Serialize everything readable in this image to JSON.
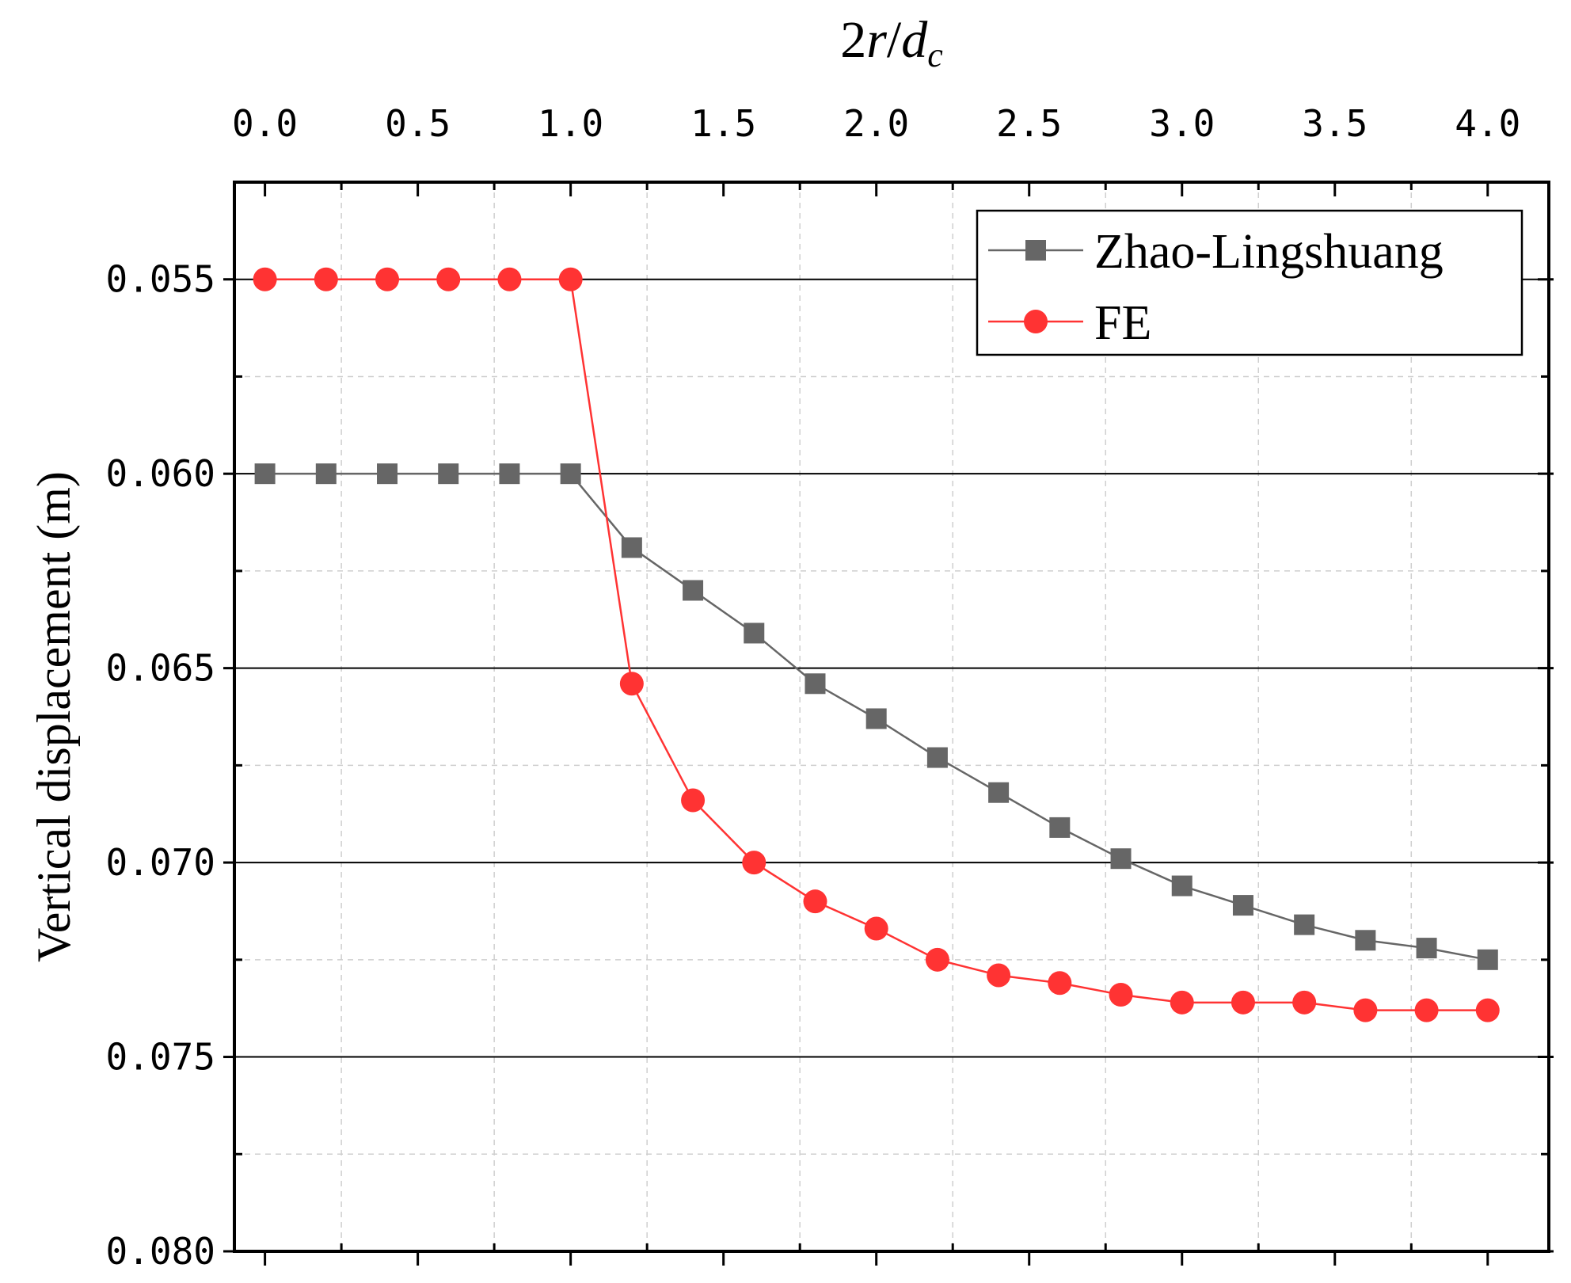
{
  "chart_data": {
    "type": "line",
    "x_axis": {
      "title": "2r/d",
      "title_parts": {
        "base": "2",
        "var": "r",
        "slash": "/",
        "d": "d",
        "sub": "c"
      },
      "range": [
        -0.1,
        4.2
      ],
      "ticks": [
        0.0,
        0.5,
        1.0,
        1.5,
        2.0,
        2.5,
        3.0,
        3.5,
        4.0
      ],
      "tick_labels": [
        "0.0",
        "0.5",
        "1.0",
        "1.5",
        "2.0",
        "2.5",
        "3.0",
        "3.5",
        "4.0"
      ],
      "position": "top"
    },
    "y_axis": {
      "title": "Vertical displacement (m)",
      "range": [
        0.0525,
        0.08
      ],
      "reversed": true,
      "ticks": [
        0.055,
        0.06,
        0.065,
        0.07,
        0.075,
        0.08
      ],
      "tick_labels": [
        "0.055",
        "0.060",
        "0.065",
        "0.070",
        "0.075",
        "0.080"
      ]
    },
    "x": [
      0.0,
      0.2,
      0.4,
      0.6,
      0.8,
      1.0,
      1.2,
      1.4,
      1.6,
      1.8,
      2.0,
      2.2,
      2.4,
      2.6,
      2.8,
      3.0,
      3.2,
      3.4,
      3.6,
      3.8,
      4.0
    ],
    "series": [
      {
        "name": "Zhao-Lingshuang",
        "color": "#666666",
        "marker": "square",
        "values": [
          0.06,
          0.06,
          0.06,
          0.06,
          0.06,
          0.06,
          0.0619,
          0.063,
          0.0641,
          0.0654,
          0.0663,
          0.0673,
          0.0682,
          0.0691,
          0.0699,
          0.0706,
          0.0711,
          0.0716,
          0.072,
          0.0722,
          0.0725
        ]
      },
      {
        "name": "FE",
        "color": "#ff3333",
        "marker": "circle",
        "values": [
          0.055,
          0.055,
          0.055,
          0.055,
          0.055,
          0.055,
          0.0654,
          0.0684,
          0.07,
          0.071,
          0.0717,
          0.0725,
          0.0729,
          0.0731,
          0.0734,
          0.0736,
          0.0736,
          0.0736,
          0.0738,
          0.0738,
          0.0738
        ]
      }
    ],
    "grid": true,
    "legend_position": "top-right"
  }
}
